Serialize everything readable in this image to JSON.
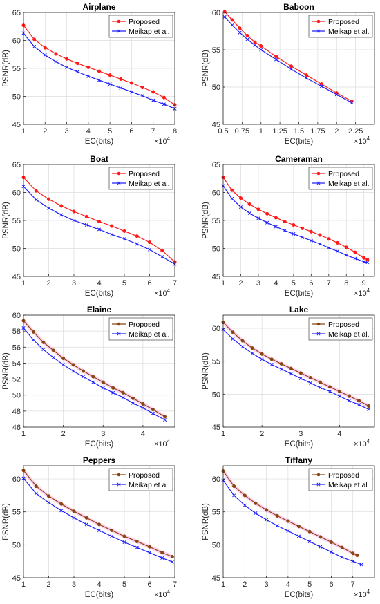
{
  "figure": {
    "ylabel": "PSNR(dB)",
    "xlabel": "EC(bits)",
    "exponent_label": "×10",
    "exponent_power": "4",
    "legend": {
      "proposed": "Proposed",
      "baseline": "Meikap et al."
    },
    "colors": {
      "proposed_red": "#ff1a1a",
      "proposed_brown": "#8b4513",
      "baseline": "#2020ff",
      "marker_pink": "#ffb3e6",
      "grid": "#dcdcdc"
    }
  },
  "chart_data": [
    {
      "type": "line",
      "title": "Airplane",
      "xlabel": "EC(bits)",
      "ylabel": "PSNR(dB)",
      "x_multiplier": "×10^4",
      "xlim": [
        1,
        8
      ],
      "ylim": [
        45,
        65
      ],
      "xticks": [
        1,
        2,
        3,
        4,
        5,
        6,
        7,
        8
      ],
      "xtick_labels": [
        "1",
        "2",
        "3",
        "4",
        "5",
        "6",
        "7",
        "8"
      ],
      "yticks": [
        45,
        50,
        55,
        60,
        65
      ],
      "ytick_labels": [
        "45",
        "50",
        "55",
        "60",
        "65"
      ],
      "grid": true,
      "legend_position": "top-right",
      "proposed_color": "red",
      "series": [
        {
          "name": "Proposed",
          "x": [
            1,
            1.5,
            2,
            2.5,
            3,
            3.5,
            4,
            4.5,
            5,
            5.5,
            6,
            6.5,
            7,
            7.5,
            8
          ],
          "y": [
            62.7,
            60.2,
            58.7,
            57.6,
            56.7,
            55.9,
            55.2,
            54.5,
            53.8,
            53.1,
            52.4,
            51.6,
            50.8,
            49.8,
            48.5
          ]
        },
        {
          "name": "Meikap et al.",
          "x": [
            1,
            1.5,
            2,
            2.5,
            3,
            3.5,
            4,
            4.5,
            5,
            5.5,
            6,
            6.5,
            7,
            7.5,
            8
          ],
          "y": [
            61.3,
            58.9,
            57.4,
            56.2,
            55.2,
            54.4,
            53.6,
            52.9,
            52.2,
            51.5,
            50.8,
            50.1,
            49.3,
            48.6,
            47.8
          ]
        }
      ]
    },
    {
      "type": "line",
      "title": "Baboon",
      "xlabel": "EC(bits)",
      "ylabel": "PSNR(dB)",
      "x_multiplier": "×10^4",
      "xlim": [
        0.5,
        2.5
      ],
      "ylim": [
        45,
        60
      ],
      "xticks": [
        0.5,
        0.75,
        1,
        1.25,
        1.5,
        1.75,
        2,
        2.25
      ],
      "xtick_labels": [
        "0.5",
        "0.75",
        "1",
        "1.25",
        "1.5",
        "1.75",
        "2",
        "2.25"
      ],
      "yticks": [
        45,
        50,
        55,
        60
      ],
      "ytick_labels": [
        "45",
        "50",
        "55",
        "60"
      ],
      "grid": true,
      "legend_position": "top-right",
      "proposed_color": "red",
      "series": [
        {
          "name": "Proposed",
          "x": [
            0.52,
            0.62,
            0.72,
            0.82,
            0.92,
            1.0,
            1.2,
            1.4,
            1.6,
            1.8,
            2.0,
            2.2
          ],
          "y": [
            60.1,
            59.0,
            57.9,
            56.9,
            56.0,
            55.5,
            54.1,
            52.8,
            51.6,
            50.4,
            49.2,
            48.1
          ]
        },
        {
          "name": "Meikap et al.",
          "x": [
            0.52,
            0.62,
            0.72,
            0.82,
            0.92,
            1.0,
            1.2,
            1.4,
            1.6,
            1.8,
            2.0,
            2.2
          ],
          "y": [
            59.4,
            58.3,
            57.3,
            56.4,
            55.6,
            55.0,
            53.7,
            52.4,
            51.2,
            50.1,
            49.0,
            47.9
          ]
        }
      ]
    },
    {
      "type": "line",
      "title": "Boat",
      "xlabel": "EC(bits)",
      "ylabel": "PSNR(dB)",
      "x_multiplier": "×10^4",
      "xlim": [
        1,
        7
      ],
      "ylim": [
        45,
        65
      ],
      "xticks": [
        1,
        2,
        3,
        4,
        5,
        6,
        7
      ],
      "xtick_labels": [
        "1",
        "2",
        "3",
        "4",
        "5",
        "6",
        "7"
      ],
      "yticks": [
        45,
        50,
        55,
        60,
        65
      ],
      "ytick_labels": [
        "45",
        "50",
        "55",
        "60",
        "65"
      ],
      "grid": true,
      "legend_position": "top-right",
      "proposed_color": "red",
      "series": [
        {
          "name": "Proposed",
          "x": [
            1,
            1.5,
            2,
            2.5,
            3,
            3.5,
            4,
            4.5,
            5,
            5.5,
            6,
            6.5,
            7
          ],
          "y": [
            62.7,
            60.3,
            58.8,
            57.6,
            56.6,
            55.7,
            54.8,
            54.0,
            53.1,
            52.2,
            51.1,
            49.6,
            47.6
          ]
        },
        {
          "name": "Meikap et al.",
          "x": [
            1,
            1.5,
            2,
            2.5,
            3,
            3.5,
            4,
            4.5,
            5,
            5.5,
            6,
            6.5,
            7
          ],
          "y": [
            61.1,
            58.7,
            57.2,
            56.0,
            55.0,
            54.2,
            53.4,
            52.5,
            51.7,
            50.8,
            49.8,
            48.5,
            47.2
          ]
        }
      ]
    },
    {
      "type": "line",
      "title": "Cameraman",
      "xlabel": "EC(bits)",
      "ylabel": "PSNR(dB)",
      "x_multiplier": "×10^4",
      "xlim": [
        1,
        9.6
      ],
      "ylim": [
        45,
        65
      ],
      "xticks": [
        1,
        2,
        3,
        4,
        5,
        6,
        7,
        8,
        9
      ],
      "xtick_labels": [
        "1",
        "2",
        "3",
        "4",
        "5",
        "6",
        "7",
        "8",
        "9"
      ],
      "yticks": [
        45,
        50,
        55,
        60,
        65
      ],
      "ytick_labels": [
        "45",
        "50",
        "55",
        "60",
        "65"
      ],
      "grid": true,
      "legend_position": "top-right",
      "proposed_color": "red",
      "series": [
        {
          "name": "Proposed",
          "x": [
            1,
            1.5,
            2,
            2.5,
            3,
            3.5,
            4,
            4.5,
            5,
            5.5,
            6,
            6.5,
            7,
            7.5,
            8,
            8.5,
            9,
            9.2
          ],
          "y": [
            62.7,
            60.4,
            59.0,
            57.9,
            57.0,
            56.2,
            55.5,
            54.8,
            54.2,
            53.6,
            53.0,
            52.4,
            51.7,
            51.0,
            50.2,
            49.3,
            48.3,
            48.0
          ]
        },
        {
          "name": "Meikap et al.",
          "x": [
            1,
            1.5,
            2,
            2.5,
            3,
            3.5,
            4,
            4.5,
            5,
            5.5,
            6,
            6.5,
            7,
            7.5,
            8,
            8.5,
            9,
            9.2
          ],
          "y": [
            61.2,
            58.9,
            57.4,
            56.3,
            55.4,
            54.6,
            53.9,
            53.2,
            52.6,
            52.0,
            51.4,
            50.8,
            50.1,
            49.5,
            48.8,
            48.2,
            47.6,
            47.5
          ]
        }
      ]
    },
    {
      "type": "line",
      "title": "Elaine",
      "xlabel": "EC(bits)",
      "ylabel": "PSNR(dB)",
      "x_multiplier": "×10^4",
      "xlim": [
        1,
        4.8
      ],
      "ylim": [
        46,
        60
      ],
      "xticks": [
        1,
        2,
        3,
        4
      ],
      "xtick_labels": [
        "1",
        "2",
        "3",
        "4"
      ],
      "yticks": [
        46,
        48,
        50,
        52,
        54,
        56,
        58,
        60
      ],
      "ytick_labels": [
        "46",
        "48",
        "50",
        "52",
        "54",
        "56",
        "58",
        "60"
      ],
      "grid": true,
      "legend_position": "top-right",
      "proposed_color": "brown",
      "series": [
        {
          "name": "Proposed",
          "x": [
            1,
            1.25,
            1.5,
            1.75,
            2,
            2.25,
            2.5,
            2.75,
            3,
            3.25,
            3.5,
            3.75,
            4,
            4.25,
            4.55
          ],
          "y": [
            59.3,
            57.9,
            56.6,
            55.6,
            54.6,
            53.8,
            53.0,
            52.3,
            51.6,
            50.9,
            50.3,
            49.6,
            48.9,
            48.2,
            47.3
          ]
        },
        {
          "name": "Meikap et al.",
          "x": [
            1,
            1.25,
            1.5,
            1.75,
            2,
            2.25,
            2.5,
            2.75,
            3,
            3.25,
            3.5,
            3.75,
            4,
            4.25,
            4.55
          ],
          "y": [
            58.4,
            56.9,
            55.7,
            54.7,
            53.8,
            53.0,
            52.3,
            51.6,
            50.9,
            50.3,
            49.7,
            49.0,
            48.4,
            47.7,
            46.9
          ]
        }
      ]
    },
    {
      "type": "line",
      "title": "Lake",
      "xlabel": "EC(bits)",
      "ylabel": "PSNR(dB)",
      "x_multiplier": "×10^4",
      "xlim": [
        1,
        4.9
      ],
      "ylim": [
        45,
        62
      ],
      "xticks": [
        1,
        2,
        3,
        4
      ],
      "xtick_labels": [
        "1",
        "2",
        "3",
        "4"
      ],
      "yticks": [
        45,
        50,
        55,
        60
      ],
      "ytick_labels": [
        "45",
        "50",
        "55",
        "60"
      ],
      "grid": true,
      "legend_position": "top-right",
      "proposed_color": "brown",
      "series": [
        {
          "name": "Proposed",
          "x": [
            1,
            1.25,
            1.5,
            1.75,
            2,
            2.25,
            2.5,
            2.75,
            3,
            3.25,
            3.5,
            3.75,
            4,
            4.25,
            4.5,
            4.75
          ],
          "y": [
            60.9,
            59.4,
            58.1,
            57.0,
            56.1,
            55.3,
            54.6,
            53.9,
            53.2,
            52.5,
            51.8,
            51.1,
            50.4,
            49.7,
            49.0,
            48.2
          ]
        },
        {
          "name": "Meikap et al.",
          "x": [
            1,
            1.25,
            1.5,
            1.75,
            2,
            2.25,
            2.5,
            2.75,
            3,
            3.25,
            3.5,
            3.75,
            4,
            4.25,
            4.5,
            4.75
          ],
          "y": [
            59.8,
            58.4,
            57.2,
            56.2,
            55.3,
            54.5,
            53.8,
            53.1,
            52.4,
            51.7,
            51.0,
            50.4,
            49.7,
            49.0,
            48.4,
            47.7
          ]
        }
      ]
    },
    {
      "type": "line",
      "title": "Peppers",
      "xlabel": "EC(bits)",
      "ylabel": "PSNR(dB)",
      "x_multiplier": "×10^4",
      "xlim": [
        1,
        7
      ],
      "ylim": [
        45,
        62
      ],
      "xticks": [
        1,
        2,
        3,
        4,
        5,
        6,
        7
      ],
      "xtick_labels": [
        "1",
        "2",
        "3",
        "4",
        "5",
        "6",
        "7"
      ],
      "yticks": [
        45,
        50,
        55,
        60
      ],
      "ytick_labels": [
        "45",
        "50",
        "55",
        "60"
      ],
      "grid": true,
      "legend_position": "top-right",
      "proposed_color": "brown",
      "series": [
        {
          "name": "Proposed",
          "x": [
            1,
            1.5,
            2,
            2.5,
            3,
            3.5,
            4,
            4.5,
            5,
            5.5,
            6,
            6.5,
            6.9
          ],
          "y": [
            61.3,
            58.9,
            57.4,
            56.2,
            55.1,
            54.1,
            53.1,
            52.2,
            51.3,
            50.5,
            49.7,
            48.8,
            48.2
          ]
        },
        {
          "name": "Meikap et al.",
          "x": [
            1,
            1.5,
            2,
            2.5,
            3,
            3.5,
            4,
            4.5,
            5,
            5.5,
            6,
            6.5,
            6.9
          ],
          "y": [
            60.1,
            57.8,
            56.4,
            55.2,
            54.1,
            53.1,
            52.2,
            51.3,
            50.4,
            49.6,
            48.8,
            48.0,
            47.4
          ]
        }
      ]
    },
    {
      "type": "line",
      "title": "Tiffany",
      "xlabel": "EC(bits)",
      "ylabel": "PSNR(dB)",
      "x_multiplier": "×10^4",
      "xlim": [
        1,
        8
      ],
      "ylim": [
        45,
        62
      ],
      "xticks": [
        1,
        2,
        3,
        4,
        5,
        6,
        7
      ],
      "xtick_labels": [
        "1",
        "2",
        "3",
        "4",
        "5",
        "6",
        "7"
      ],
      "yticks": [
        45,
        50,
        55,
        60
      ],
      "ytick_labels": [
        "45",
        "50",
        "55",
        "60"
      ],
      "grid": true,
      "legend_position": "top-right",
      "proposed_color": "brown",
      "series": [
        {
          "name": "Proposed",
          "x": [
            1,
            1.5,
            2,
            2.5,
            3,
            3.5,
            4,
            4.5,
            5,
            5.5,
            6,
            6.5,
            7,
            7.2
          ],
          "y": [
            61.2,
            58.9,
            57.5,
            56.3,
            55.3,
            54.4,
            53.6,
            52.8,
            52.0,
            51.2,
            50.4,
            49.6,
            48.7,
            48.4
          ]
        },
        {
          "name": "Meikap et al.",
          "x": [
            1,
            1.5,
            2,
            2.5,
            3,
            3.5,
            4,
            4.5,
            5,
            5.5,
            6,
            6.5,
            7,
            7.4
          ],
          "y": [
            59.8,
            57.5,
            56.0,
            54.8,
            53.8,
            52.9,
            52.1,
            51.3,
            50.5,
            49.7,
            48.9,
            48.1,
            47.5,
            47.0
          ]
        }
      ]
    }
  ]
}
